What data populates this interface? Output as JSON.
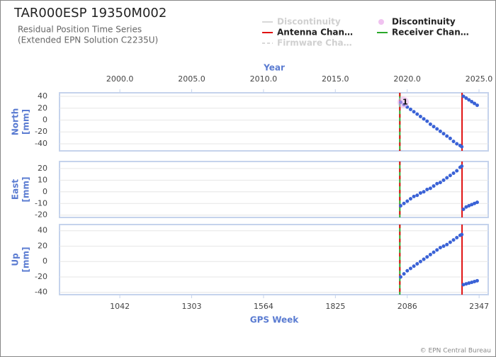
{
  "chart_data": {
    "type": "scatter",
    "title": "TAR000ESP 19350M002",
    "subtitle": [
      "Residual Position Time Series",
      "(Extended EPN Solution C2235U)"
    ],
    "legend": [
      {
        "name": "Discontinuity",
        "color": "#d8d8d8",
        "style": "line",
        "hidden": true
      },
      {
        "name": "Discontinuity",
        "color": "#e9a8e9",
        "style": "circle",
        "hidden": false
      },
      {
        "name": "Antenna Chan…",
        "color": "#e01010",
        "style": "line",
        "hidden": false
      },
      {
        "name": "Receiver Chan…",
        "color": "#2aa82a",
        "style": "line",
        "hidden": false
      },
      {
        "name": "Firmware Cha…",
        "color": "#d8d8d8",
        "style": "dashed",
        "hidden": true
      }
    ],
    "xlabel": "GPS Week",
    "xlim": [
      823,
      2380
    ],
    "xticks": [
      1042,
      1303,
      1564,
      1825,
      2086,
      2347
    ],
    "x2label": "Year",
    "x2lim": [
      1995.8,
      2025.64
    ],
    "x2ticks": [
      {
        "value": 2000,
        "label": "2000.0"
      },
      {
        "value": 2005,
        "label": "2005.0"
      },
      {
        "value": 2010,
        "label": "2010.0"
      },
      {
        "value": 2015,
        "label": "2015.0"
      },
      {
        "value": 2020,
        "label": "2020.0"
      },
      {
        "value": 2025,
        "label": "2025.0"
      }
    ],
    "grid": true,
    "color": "#3a62d6",
    "discontinuities": [
      2061
    ],
    "antenna_changes": [
      2059,
      2285
    ],
    "receiver_changes": [
      2059
    ],
    "annotation": {
      "text": "1",
      "x": 2061
    },
    "x": [
      2062,
      2074,
      2086,
      2098,
      2110,
      2122,
      2134,
      2146,
      2158,
      2170,
      2182,
      2194,
      2206,
      2218,
      2230,
      2242,
      2254,
      2266,
      2278,
      2284,
      2287,
      2290,
      2300,
      2310,
      2320,
      2330,
      2340
    ],
    "panels": [
      {
        "ylabel": [
          "North",
          "[mm]"
        ],
        "ylim": [
          -52,
          46
        ],
        "yticks": [
          -40,
          -20,
          0,
          20,
          40
        ],
        "values": [
          30,
          26,
          22,
          18,
          14,
          10,
          6,
          2,
          -2,
          -7,
          -11,
          -15,
          -19,
          -23,
          -27,
          -31,
          -36,
          -40,
          -43,
          -45,
          null,
          40,
          37,
          34,
          31,
          28,
          25
        ]
      },
      {
        "ylabel": [
          "East",
          "[mm]"
        ],
        "ylim": [
          -22,
          26
        ],
        "yticks": [
          -20,
          -10,
          0,
          10,
          20
        ],
        "values": [
          -12,
          -10,
          -8,
          -6,
          -4,
          -3,
          -1,
          0,
          2,
          3,
          5,
          7,
          8,
          10,
          12,
          14,
          16,
          18,
          21,
          22,
          null,
          -15,
          -13,
          -12,
          -11,
          -10,
          -9
        ]
      },
      {
        "ylabel": [
          "Up",
          "[mm]"
        ],
        "ylim": [
          -43,
          48
        ],
        "yticks": [
          -40,
          -20,
          0,
          20,
          40
        ],
        "values": [
          -20,
          -16,
          -12,
          -9,
          -6,
          -3,
          0,
          3,
          6,
          9,
          12,
          15,
          18,
          20,
          22,
          25,
          28,
          31,
          34,
          35,
          null,
          -30,
          -29,
          -28,
          -27,
          -26,
          -25
        ]
      }
    ],
    "footer": "© EPN Central Bureau"
  }
}
